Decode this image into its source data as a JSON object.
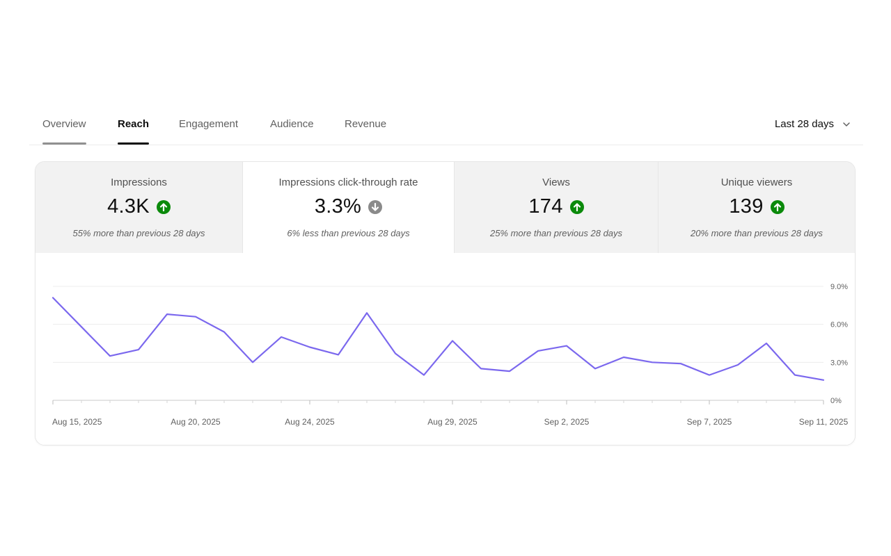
{
  "tabs": [
    {
      "label": "Overview",
      "state": "visited"
    },
    {
      "label": "Reach",
      "state": "active"
    },
    {
      "label": "Engagement",
      "state": "normal"
    },
    {
      "label": "Audience",
      "state": "normal"
    },
    {
      "label": "Revenue",
      "state": "normal"
    }
  ],
  "date_range": {
    "label": "Last 28 days"
  },
  "metrics": [
    {
      "label": "Impressions",
      "value": "4.3K",
      "trend": "up",
      "comparison": "55% more than previous 28 days",
      "selected": false
    },
    {
      "label": "Impressions click-through rate",
      "value": "3.3%",
      "trend": "down",
      "comparison": "6% less than previous 28 days",
      "selected": true
    },
    {
      "label": "Views",
      "value": "174",
      "trend": "up",
      "comparison": "25% more than previous 28 days",
      "selected": false
    },
    {
      "label": "Unique viewers",
      "value": "139",
      "trend": "up",
      "comparison": "20% more than previous 28 days",
      "selected": false
    }
  ],
  "colors": {
    "line": "#7b68ee",
    "trend_up": "#0b8a0b",
    "trend_down": "#8a8a8a",
    "tab_active_underline": "#0f0f0f",
    "tab_visited_underline": "#909090"
  },
  "chart_data": {
    "type": "line",
    "title": "",
    "xlabel": "",
    "ylabel": "",
    "x": [
      "Aug 15, 2025",
      "Aug 16, 2025",
      "Aug 17, 2025",
      "Aug 18, 2025",
      "Aug 19, 2025",
      "Aug 20, 2025",
      "Aug 21, 2025",
      "Aug 22, 2025",
      "Aug 23, 2025",
      "Aug 24, 2025",
      "Aug 25, 2025",
      "Aug 26, 2025",
      "Aug 27, 2025",
      "Aug 28, 2025",
      "Aug 29, 2025",
      "Aug 30, 2025",
      "Aug 31, 2025",
      "Sep 1, 2025",
      "Sep 2, 2025",
      "Sep 3, 2025",
      "Sep 4, 2025",
      "Sep 5, 2025",
      "Sep 6, 2025",
      "Sep 7, 2025",
      "Sep 8, 2025",
      "Sep 9, 2025",
      "Sep 10, 2025",
      "Sep 11, 2025"
    ],
    "series": [
      {
        "values": [
          8.1,
          5.8,
          3.5,
          4.0,
          6.8,
          6.6,
          5.4,
          3.0,
          5.0,
          4.2,
          3.6,
          6.9,
          3.7,
          2.0,
          4.7,
          2.5,
          2.3,
          3.9,
          4.3,
          2.5,
          3.4,
          3.0,
          2.9,
          2.0,
          2.8,
          4.5,
          2.0,
          1.6
        ]
      }
    ],
    "y_ticks": [
      0,
      3.0,
      6.0,
      9.0
    ],
    "y_tick_labels": [
      "0%",
      "3.0%",
      "6.0%",
      "9.0%"
    ],
    "ylim": [
      0,
      9.0
    ],
    "x_tick_labels": [
      {
        "label": "Aug 15, 2025",
        "index": 0
      },
      {
        "label": "Aug 20, 2025",
        "index": 5
      },
      {
        "label": "Aug 24, 2025",
        "index": 9
      },
      {
        "label": "Aug 29, 2025",
        "index": 14
      },
      {
        "label": "Sep 2, 2025",
        "index": 18
      },
      {
        "label": "Sep 7, 2025",
        "index": 23
      },
      {
        "label": "Sep 11, 2025",
        "index": 27
      }
    ],
    "y_axis_side": "right",
    "grid": true
  }
}
